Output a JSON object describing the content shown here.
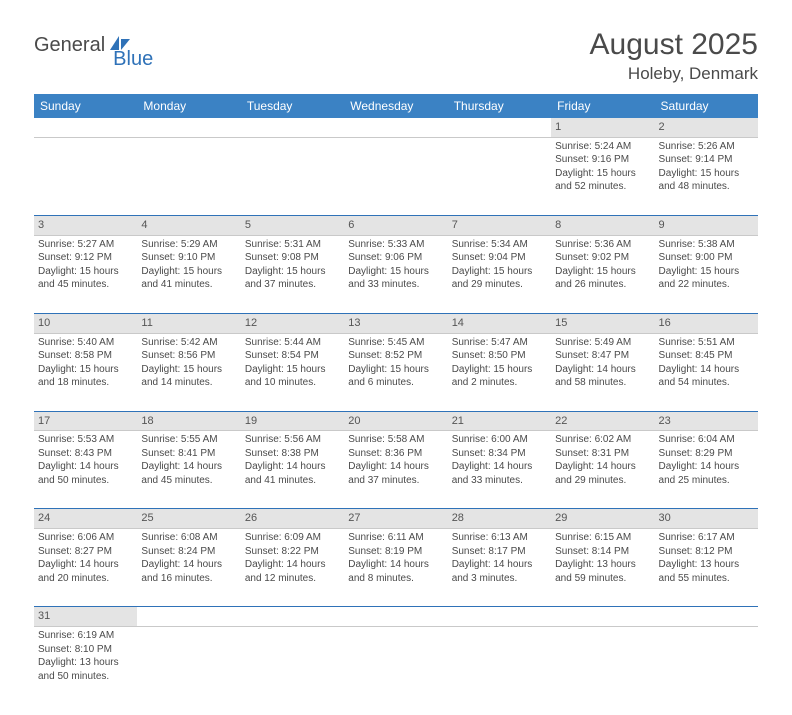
{
  "logo": {
    "part1": "General",
    "part2": "Blue"
  },
  "title": {
    "month": "August 2025",
    "location": "Holeby, Denmark"
  },
  "colors": {
    "header_bg": "#3b82c4",
    "header_fg": "#ffffff",
    "daynum_bg": "#e4e4e4",
    "row_border": "#2f72b8"
  },
  "day_headers": [
    "Sunday",
    "Monday",
    "Tuesday",
    "Wednesday",
    "Thursday",
    "Friday",
    "Saturday"
  ],
  "weeks": [
    [
      null,
      null,
      null,
      null,
      null,
      {
        "n": "1",
        "sr": "Sunrise: 5:24 AM",
        "ss": "Sunset: 9:16 PM",
        "dl1": "Daylight: 15 hours",
        "dl2": "and 52 minutes."
      },
      {
        "n": "2",
        "sr": "Sunrise: 5:26 AM",
        "ss": "Sunset: 9:14 PM",
        "dl1": "Daylight: 15 hours",
        "dl2": "and 48 minutes."
      }
    ],
    [
      {
        "n": "3",
        "sr": "Sunrise: 5:27 AM",
        "ss": "Sunset: 9:12 PM",
        "dl1": "Daylight: 15 hours",
        "dl2": "and 45 minutes."
      },
      {
        "n": "4",
        "sr": "Sunrise: 5:29 AM",
        "ss": "Sunset: 9:10 PM",
        "dl1": "Daylight: 15 hours",
        "dl2": "and 41 minutes."
      },
      {
        "n": "5",
        "sr": "Sunrise: 5:31 AM",
        "ss": "Sunset: 9:08 PM",
        "dl1": "Daylight: 15 hours",
        "dl2": "and 37 minutes."
      },
      {
        "n": "6",
        "sr": "Sunrise: 5:33 AM",
        "ss": "Sunset: 9:06 PM",
        "dl1": "Daylight: 15 hours",
        "dl2": "and 33 minutes."
      },
      {
        "n": "7",
        "sr": "Sunrise: 5:34 AM",
        "ss": "Sunset: 9:04 PM",
        "dl1": "Daylight: 15 hours",
        "dl2": "and 29 minutes."
      },
      {
        "n": "8",
        "sr": "Sunrise: 5:36 AM",
        "ss": "Sunset: 9:02 PM",
        "dl1": "Daylight: 15 hours",
        "dl2": "and 26 minutes."
      },
      {
        "n": "9",
        "sr": "Sunrise: 5:38 AM",
        "ss": "Sunset: 9:00 PM",
        "dl1": "Daylight: 15 hours",
        "dl2": "and 22 minutes."
      }
    ],
    [
      {
        "n": "10",
        "sr": "Sunrise: 5:40 AM",
        "ss": "Sunset: 8:58 PM",
        "dl1": "Daylight: 15 hours",
        "dl2": "and 18 minutes."
      },
      {
        "n": "11",
        "sr": "Sunrise: 5:42 AM",
        "ss": "Sunset: 8:56 PM",
        "dl1": "Daylight: 15 hours",
        "dl2": "and 14 minutes."
      },
      {
        "n": "12",
        "sr": "Sunrise: 5:44 AM",
        "ss": "Sunset: 8:54 PM",
        "dl1": "Daylight: 15 hours",
        "dl2": "and 10 minutes."
      },
      {
        "n": "13",
        "sr": "Sunrise: 5:45 AM",
        "ss": "Sunset: 8:52 PM",
        "dl1": "Daylight: 15 hours",
        "dl2": "and 6 minutes."
      },
      {
        "n": "14",
        "sr": "Sunrise: 5:47 AM",
        "ss": "Sunset: 8:50 PM",
        "dl1": "Daylight: 15 hours",
        "dl2": "and 2 minutes."
      },
      {
        "n": "15",
        "sr": "Sunrise: 5:49 AM",
        "ss": "Sunset: 8:47 PM",
        "dl1": "Daylight: 14 hours",
        "dl2": "and 58 minutes."
      },
      {
        "n": "16",
        "sr": "Sunrise: 5:51 AM",
        "ss": "Sunset: 8:45 PM",
        "dl1": "Daylight: 14 hours",
        "dl2": "and 54 minutes."
      }
    ],
    [
      {
        "n": "17",
        "sr": "Sunrise: 5:53 AM",
        "ss": "Sunset: 8:43 PM",
        "dl1": "Daylight: 14 hours",
        "dl2": "and 50 minutes."
      },
      {
        "n": "18",
        "sr": "Sunrise: 5:55 AM",
        "ss": "Sunset: 8:41 PM",
        "dl1": "Daylight: 14 hours",
        "dl2": "and 45 minutes."
      },
      {
        "n": "19",
        "sr": "Sunrise: 5:56 AM",
        "ss": "Sunset: 8:38 PM",
        "dl1": "Daylight: 14 hours",
        "dl2": "and 41 minutes."
      },
      {
        "n": "20",
        "sr": "Sunrise: 5:58 AM",
        "ss": "Sunset: 8:36 PM",
        "dl1": "Daylight: 14 hours",
        "dl2": "and 37 minutes."
      },
      {
        "n": "21",
        "sr": "Sunrise: 6:00 AM",
        "ss": "Sunset: 8:34 PM",
        "dl1": "Daylight: 14 hours",
        "dl2": "and 33 minutes."
      },
      {
        "n": "22",
        "sr": "Sunrise: 6:02 AM",
        "ss": "Sunset: 8:31 PM",
        "dl1": "Daylight: 14 hours",
        "dl2": "and 29 minutes."
      },
      {
        "n": "23",
        "sr": "Sunrise: 6:04 AM",
        "ss": "Sunset: 8:29 PM",
        "dl1": "Daylight: 14 hours",
        "dl2": "and 25 minutes."
      }
    ],
    [
      {
        "n": "24",
        "sr": "Sunrise: 6:06 AM",
        "ss": "Sunset: 8:27 PM",
        "dl1": "Daylight: 14 hours",
        "dl2": "and 20 minutes."
      },
      {
        "n": "25",
        "sr": "Sunrise: 6:08 AM",
        "ss": "Sunset: 8:24 PM",
        "dl1": "Daylight: 14 hours",
        "dl2": "and 16 minutes."
      },
      {
        "n": "26",
        "sr": "Sunrise: 6:09 AM",
        "ss": "Sunset: 8:22 PM",
        "dl1": "Daylight: 14 hours",
        "dl2": "and 12 minutes."
      },
      {
        "n": "27",
        "sr": "Sunrise: 6:11 AM",
        "ss": "Sunset: 8:19 PM",
        "dl1": "Daylight: 14 hours",
        "dl2": "and 8 minutes."
      },
      {
        "n": "28",
        "sr": "Sunrise: 6:13 AM",
        "ss": "Sunset: 8:17 PM",
        "dl1": "Daylight: 14 hours",
        "dl2": "and 3 minutes."
      },
      {
        "n": "29",
        "sr": "Sunrise: 6:15 AM",
        "ss": "Sunset: 8:14 PM",
        "dl1": "Daylight: 13 hours",
        "dl2": "and 59 minutes."
      },
      {
        "n": "30",
        "sr": "Sunrise: 6:17 AM",
        "ss": "Sunset: 8:12 PM",
        "dl1": "Daylight: 13 hours",
        "dl2": "and 55 minutes."
      }
    ],
    [
      {
        "n": "31",
        "sr": "Sunrise: 6:19 AM",
        "ss": "Sunset: 8:10 PM",
        "dl1": "Daylight: 13 hours",
        "dl2": "and 50 minutes."
      },
      null,
      null,
      null,
      null,
      null,
      null
    ]
  ]
}
